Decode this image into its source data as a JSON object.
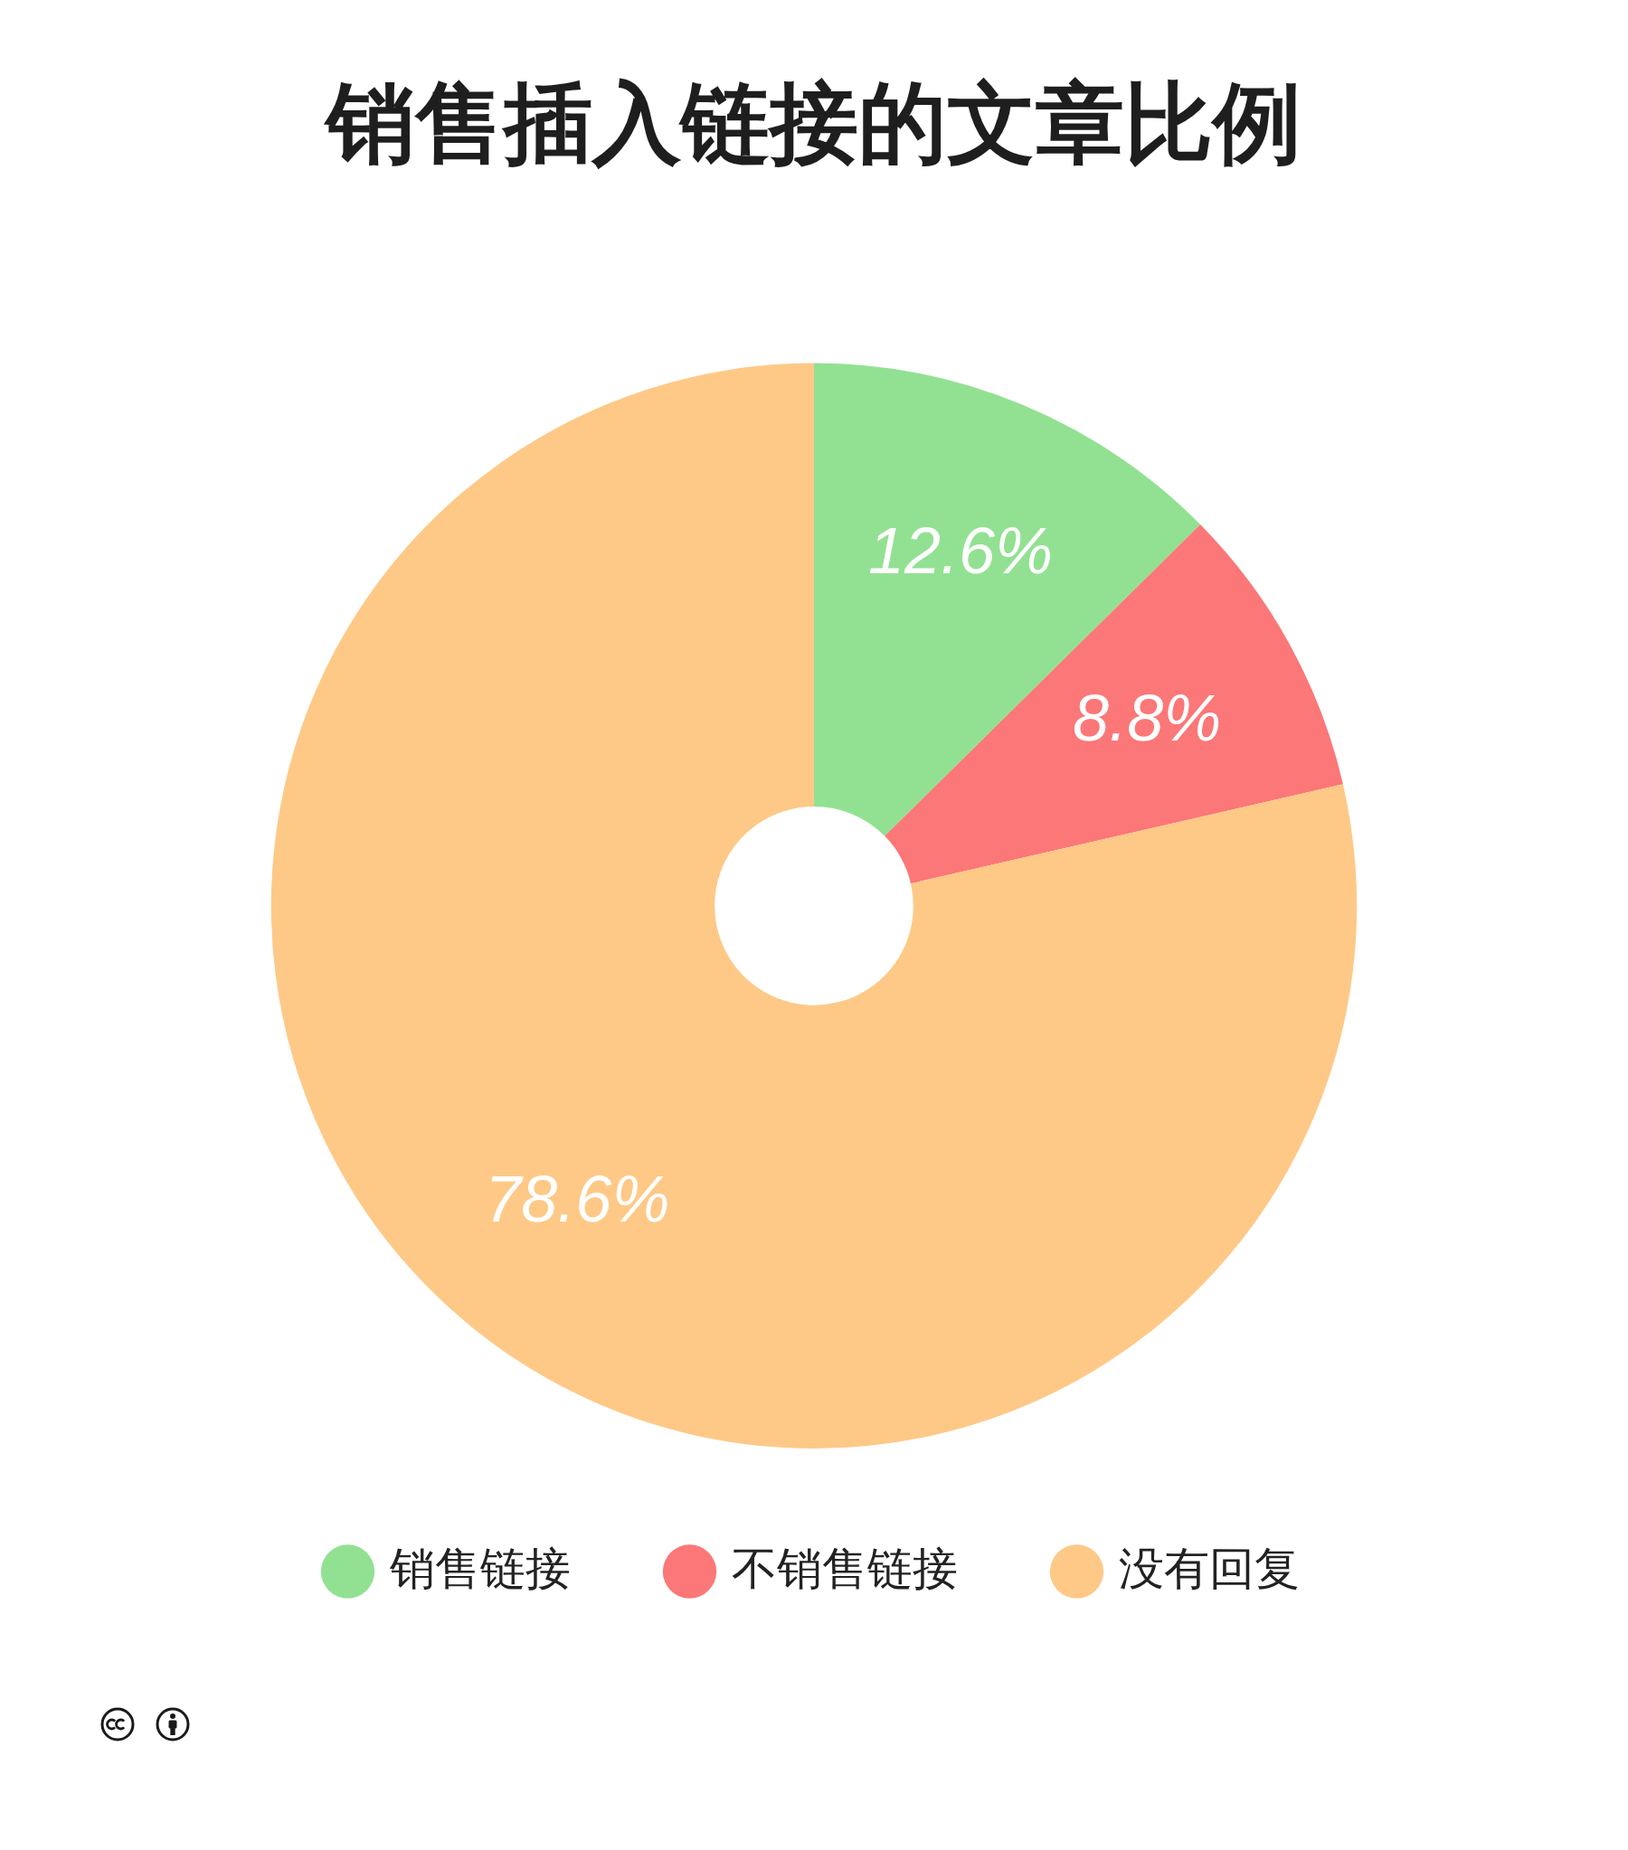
{
  "chart_data": {
    "type": "donut",
    "title": "销售插入链接的文章比例",
    "categories": [
      "销售链接",
      "不销售链接",
      "没有回复"
    ],
    "values": [
      12.6,
      8.8,
      78.6
    ],
    "colors": [
      "#92e192",
      "#fc7777",
      "#fec987"
    ],
    "value_labels": [
      "12.6%",
      "8.8%",
      "78.6%"
    ],
    "legend": "bottom"
  }
}
